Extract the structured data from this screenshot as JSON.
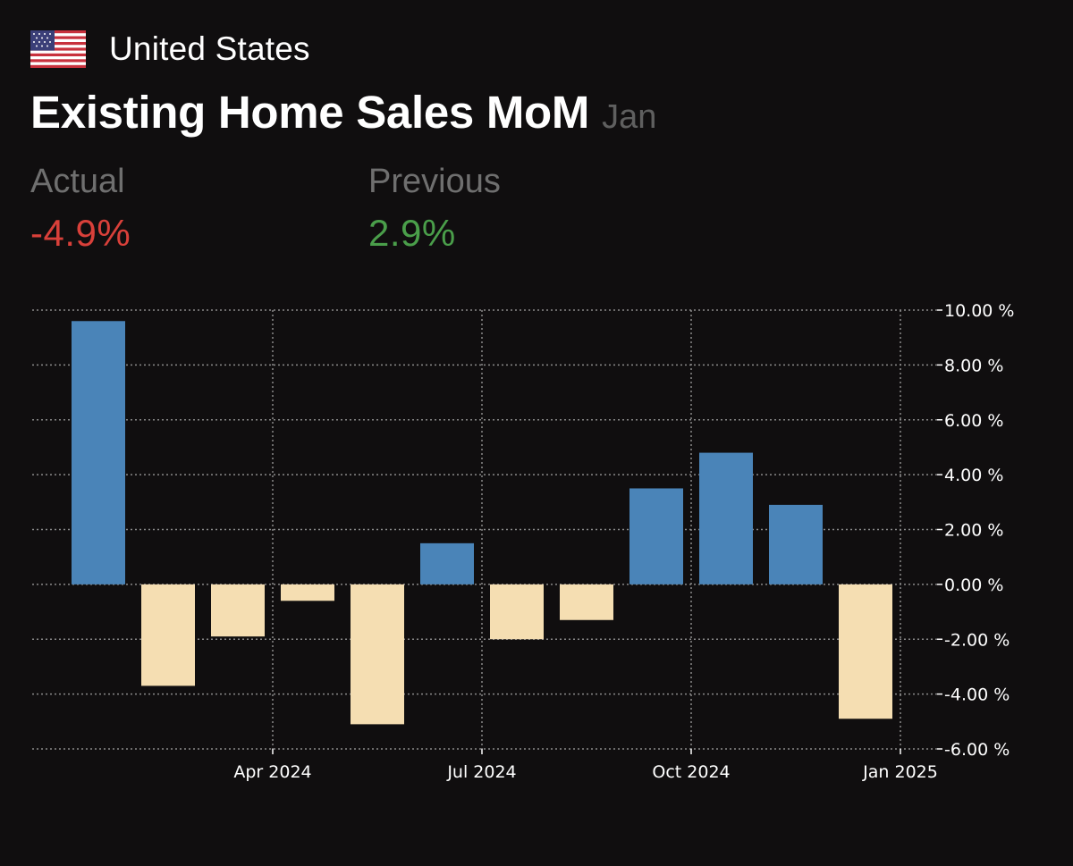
{
  "header": {
    "country": "United States",
    "flag_icon": "us-flag-icon",
    "title": "Existing Home Sales MoM",
    "period": "Jan"
  },
  "stats": {
    "actual_label": "Actual",
    "actual_value": "-4.9%",
    "actual_color": "#d9403a",
    "previous_label": "Previous",
    "previous_value": "2.9%",
    "previous_color": "#4a9e4a"
  },
  "colors": {
    "positive": "#4a84b8",
    "negative": "#f5deb2",
    "grid": "#8a8a8a"
  },
  "chart_data": {
    "type": "bar",
    "title": "Existing Home Sales MoM",
    "xlabel": "",
    "ylabel": "",
    "ylim": [
      -6,
      10
    ],
    "y_ticks": [
      10,
      8,
      6,
      4,
      2,
      0,
      -2,
      -4,
      -6
    ],
    "y_tick_labels": [
      "10.00 %",
      "8.00 %",
      "6.00 %",
      "4.00 %",
      "2.00 %",
      "0.00 %",
      "-2.00 %",
      "-4.00 %",
      "-6.00 %"
    ],
    "x_tick_labels": [
      "Apr 2024",
      "Jul 2024",
      "Oct 2024",
      "Jan 2025"
    ],
    "x_tick_positions": [
      2.5,
      5.5,
      8.5,
      11.5
    ],
    "values": [
      9.6,
      -3.7,
      -1.9,
      -0.6,
      -5.1,
      1.5,
      -2.0,
      -1.3,
      3.5,
      4.8,
      2.9,
      -4.9
    ],
    "grid": true,
    "legend": "none"
  }
}
